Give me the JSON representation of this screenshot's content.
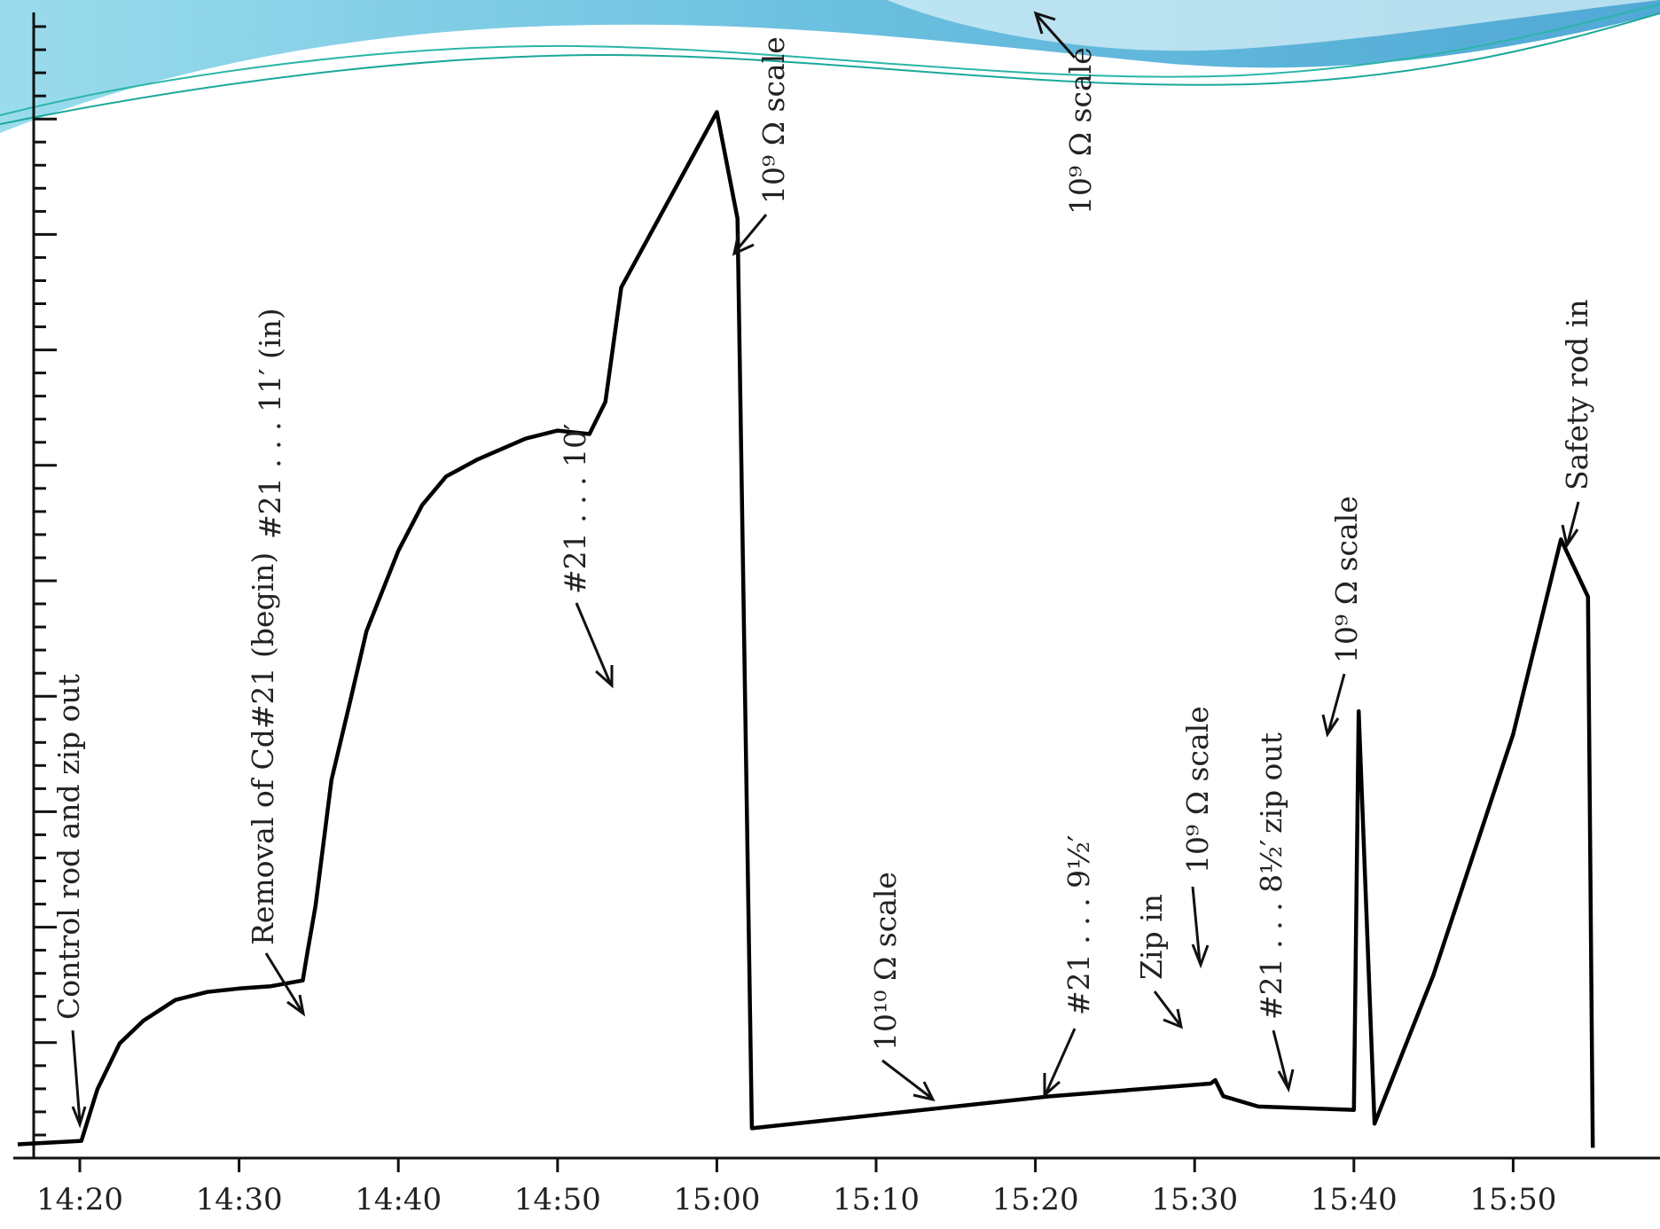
{
  "chart_data": {
    "type": "line",
    "title": "",
    "xlabel": "",
    "ylabel": "",
    "x_unit": "minutes after 14:20",
    "xlim": [
      "14:16",
      "15:59"
    ],
    "ylim": [
      0,
      100
    ],
    "y_ticks_labeled": false,
    "x_tick_labels": [
      "14:20",
      "14:30",
      "14:40",
      "14:50",
      "15:00",
      "15:10",
      "15:20",
      "15:30",
      "15:40",
      "15:50"
    ],
    "x_tick_minutes": [
      0,
      10,
      20,
      30,
      40,
      50,
      60,
      70,
      80,
      90
    ],
    "grid": false,
    "series": [
      {
        "x": [
          -3.9,
          0.1,
          1.1,
          2.5,
          4.0,
          6.0,
          8.0,
          10.0,
          12.0,
          14.0,
          14.3,
          14.8,
          15.8,
          17.0,
          18.0,
          20.0,
          21.5,
          23.0,
          25.0,
          28.0,
          30.0,
          32.0,
          33.0,
          34.0,
          40.0,
          41.3,
          42.2,
          61.0,
          71.0,
          71.3,
          71.8,
          74.0,
          80.0,
          80.3,
          81.3,
          85.0,
          90.0,
          93.0,
          94.7,
          95.0
        ],
        "y": [
          1.2,
          1.5,
          6.0,
          10.0,
          12.0,
          13.8,
          14.5,
          14.8,
          15.0,
          15.5,
          18.0,
          22.0,
          33.0,
          40.0,
          46.0,
          53.0,
          57.0,
          59.5,
          61.0,
          62.8,
          63.5,
          63.2,
          66.0,
          76.0,
          91.3,
          82.0,
          2.6,
          5.4,
          6.5,
          6.8,
          5.4,
          4.5,
          4.2,
          39.0,
          3.0,
          16.0,
          37.0,
          54.0,
          49.0,
          0.9
        ],
        "note": "trace between scale switches as read from the chart"
      }
    ],
    "annotations": [
      "Control rod and zip out",
      "Removal of Cd#21 (begin)",
      "#21 . . . 11′ (in)",
      "#21 . . . 10′",
      "10⁹ Ω scale",
      "10¹⁰ Ω scale",
      "10⁹ Ω scale",
      "#21 . . . 9½′",
      "Zip in",
      "10⁹ Ω scale",
      "zip out",
      "#21 . . . 8½′",
      "10⁹ Ω scale",
      "Safety rod in"
    ]
  }
}
